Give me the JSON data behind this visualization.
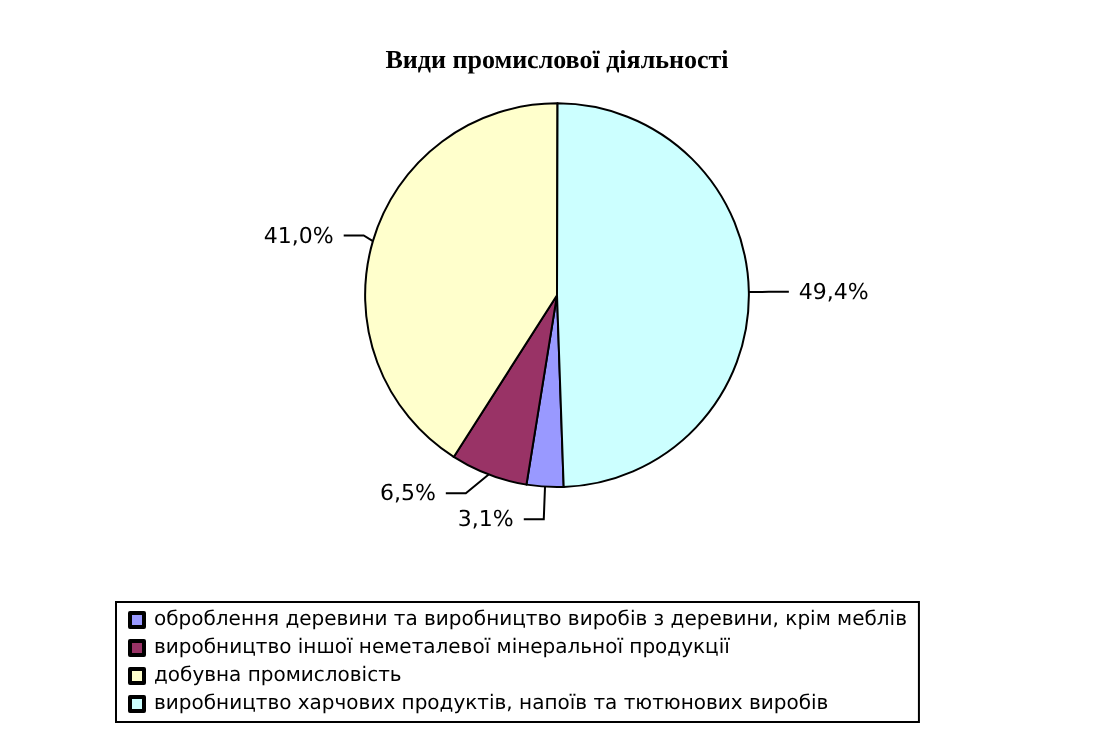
{
  "chart_data": {
    "type": "pie",
    "title": "Види промислової діяльності",
    "categories": [
      "оброблення деревини та виробництво виробів з деревини, крім меблів",
      "виробництво іншої неметалевої мінеральної продукції",
      "добувна промисловість",
      "виробництво харчових продуктів, напоїв та тютюнових виробів"
    ],
    "values": [
      3.1,
      6.5,
      41.0,
      49.4
    ],
    "value_labels": [
      "3,1%",
      "6,5%",
      "41,0%",
      "49,4%"
    ],
    "colors": [
      "#9999ff",
      "#993366",
      "#ffffcc",
      "#ccffff"
    ],
    "legend": "bottom"
  }
}
